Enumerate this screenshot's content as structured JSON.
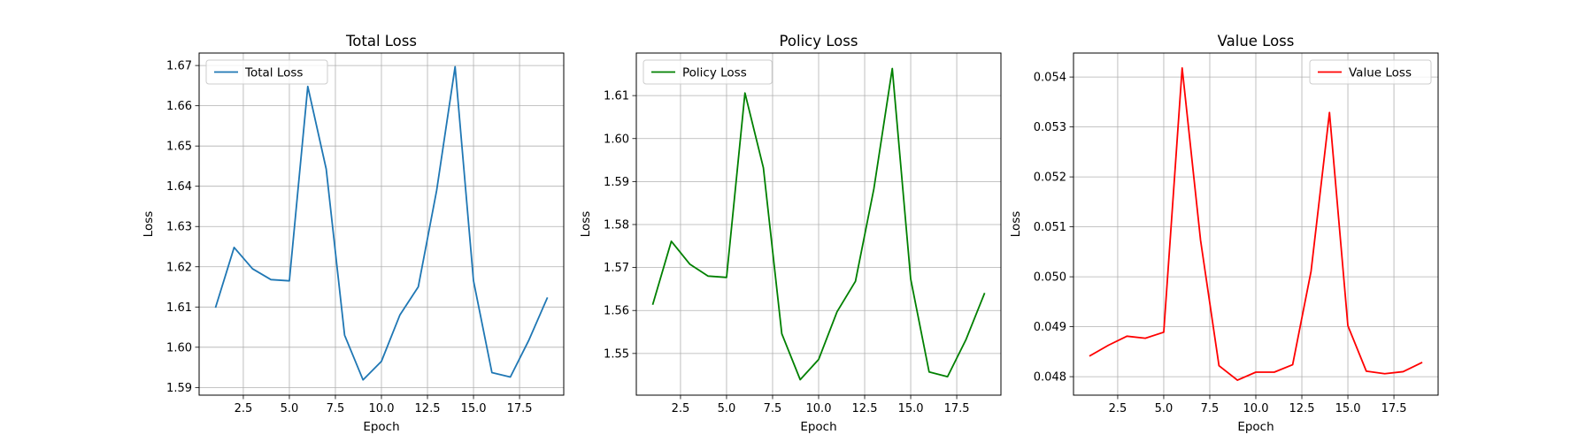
{
  "chart_data": [
    {
      "type": "line",
      "title": "Total Loss",
      "xlabel": "Epoch",
      "ylabel": "Loss",
      "x": [
        1,
        2,
        3,
        4,
        5,
        6,
        7,
        8,
        9,
        10,
        11,
        12,
        13,
        14,
        15,
        16,
        17,
        18,
        19
      ],
      "x_ticks": [
        2.5,
        5.0,
        7.5,
        10.0,
        12.5,
        15.0,
        17.5
      ],
      "x_tick_labels": [
        "2.5",
        "5.0",
        "7.5",
        "10.0",
        "12.5",
        "15.0",
        "17.5"
      ],
      "xlim": [
        0.1,
        19.9
      ],
      "y_ticks": [
        1.59,
        1.6,
        1.61,
        1.62,
        1.63,
        1.64,
        1.65,
        1.66,
        1.67
      ],
      "y_tick_labels": [
        "1.59",
        "1.60",
        "1.61",
        "1.62",
        "1.63",
        "1.64",
        "1.65",
        "1.66",
        "1.67"
      ],
      "ylim": [
        1.5881,
        1.6731
      ],
      "grid": true,
      "legend_position": "upper-left",
      "series": [
        {
          "name": "Total Loss",
          "color": "#1f77b4",
          "values": [
            1.61,
            1.6248,
            1.6195,
            1.6168,
            1.6165,
            1.6648,
            1.6443,
            1.603,
            1.5919,
            1.5965,
            1.608,
            1.615,
            1.639,
            1.6697,
            1.6165,
            1.5937,
            1.5926,
            1.6017,
            1.6122
          ]
        }
      ]
    },
    {
      "type": "line",
      "title": "Policy Loss",
      "xlabel": "Epoch",
      "ylabel": "Loss",
      "x": [
        1,
        2,
        3,
        4,
        5,
        6,
        7,
        8,
        9,
        10,
        11,
        12,
        13,
        14,
        15,
        16,
        17,
        18,
        19
      ],
      "x_ticks": [
        2.5,
        5.0,
        7.5,
        10.0,
        12.5,
        15.0,
        17.5
      ],
      "x_tick_labels": [
        "2.5",
        "5.0",
        "7.5",
        "10.0",
        "12.5",
        "15.0",
        "17.5"
      ],
      "xlim": [
        0.1,
        19.9
      ],
      "y_ticks": [
        1.55,
        1.56,
        1.57,
        1.58,
        1.59,
        1.6,
        1.61
      ],
      "y_tick_labels": [
        "1.55",
        "1.56",
        "1.57",
        "1.58",
        "1.59",
        "1.60",
        "1.61"
      ],
      "ylim": [
        1.5403,
        1.6199
      ],
      "grid": true,
      "legend_position": "upper-left",
      "series": [
        {
          "name": "Policy Loss",
          "color": "#008000",
          "values": [
            1.5615,
            1.5761,
            1.5708,
            1.568,
            1.5677,
            1.6106,
            1.5932,
            1.5546,
            1.5439,
            1.5486,
            1.5597,
            1.5668,
            1.5883,
            1.6163,
            1.5673,
            1.5457,
            1.5446,
            1.5532,
            1.5639
          ]
        }
      ]
    },
    {
      "type": "line",
      "title": "Value Loss",
      "xlabel": "Epoch",
      "ylabel": "Loss",
      "x": [
        1,
        2,
        3,
        4,
        5,
        6,
        7,
        8,
        9,
        10,
        11,
        12,
        13,
        14,
        15,
        16,
        17,
        18,
        19
      ],
      "x_ticks": [
        2.5,
        5.0,
        7.5,
        10.0,
        12.5,
        15.0,
        17.5
      ],
      "x_tick_labels": [
        "2.5",
        "5.0",
        "7.5",
        "10.0",
        "12.5",
        "15.0",
        "17.5"
      ],
      "xlim": [
        0.1,
        19.9
      ],
      "y_ticks": [
        0.048,
        0.049,
        0.05,
        0.051,
        0.052,
        0.053,
        0.054
      ],
      "y_tick_labels": [
        "0.048",
        "0.049",
        "0.050",
        "0.051",
        "0.052",
        "0.053",
        "0.054"
      ],
      "ylim": [
        0.04763,
        0.05448
      ],
      "grid": true,
      "legend_position": "upper-right",
      "series": [
        {
          "name": "Value Loss",
          "color": "#ff0000",
          "values": [
            0.04842,
            0.04863,
            0.04881,
            0.04877,
            0.04889,
            0.05418,
            0.05073,
            0.04822,
            0.04793,
            0.04809,
            0.04809,
            0.04824,
            0.05011,
            0.05329,
            0.04902,
            0.04811,
            0.04806,
            0.0481,
            0.04828
          ]
        }
      ]
    }
  ]
}
